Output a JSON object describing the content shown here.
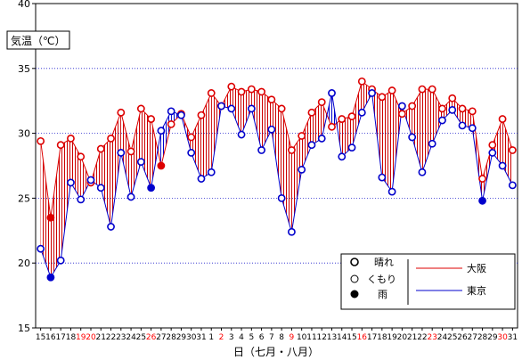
{
  "chart_data": {
    "type": "line",
    "ylabel": "気温（℃）",
    "xlabel": "日（七月・八月）",
    "ylim": [
      15,
      40
    ],
    "yticks": [
      15,
      20,
      25,
      30,
      35,
      40
    ],
    "grid": true,
    "categories": [
      "15",
      "16",
      "17",
      "18",
      "19",
      "20",
      "21",
      "22",
      "23",
      "24",
      "25",
      "26",
      "27",
      "28",
      "29",
      "30",
      "31",
      "1",
      "2",
      "3",
      "4",
      "5",
      "6",
      "7",
      "8",
      "9",
      "10",
      "11",
      "12",
      "13",
      "14",
      "15",
      "16",
      "17",
      "18",
      "19",
      "20",
      "21",
      "22",
      "23",
      "24",
      "25",
      "26",
      "27",
      "28",
      "29",
      "30",
      "31"
    ],
    "category_colors": [
      "#000000",
      "#000000",
      "#000000",
      "#000000",
      "#ff0000",
      "#ff0000",
      "#000000",
      "#000000",
      "#000000",
      "#000000",
      "#000000",
      "#ff0000",
      "#000000",
      "#000000",
      "#000000",
      "#000000",
      "#000000",
      "#000000",
      "#ff0000",
      "#000000",
      "#000000",
      "#000000",
      "#000000",
      "#000000",
      "#000000",
      "#ff0000",
      "#000000",
      "#000000",
      "#000000",
      "#000000",
      "#000000",
      "#000000",
      "#ff0000",
      "#000000",
      "#000000",
      "#000000",
      "#000000",
      "#000000",
      "#000000",
      "#ff0000",
      "#000000",
      "#000000",
      "#000000",
      "#000000",
      "#000000",
      "#000000",
      "#ff0000",
      "#000000"
    ],
    "series": [
      {
        "name": "大阪",
        "color": "#dd0000",
        "values": [
          29.4,
          23.5,
          29.1,
          29.6,
          28.2,
          26.2,
          28.8,
          29.6,
          31.6,
          28.6,
          31.9,
          31.1,
          27.5,
          30.7,
          31.5,
          29.7,
          31.4,
          33.1,
          32.1,
          33.6,
          33.2,
          33.4,
          33.2,
          32.6,
          31.9,
          28.7,
          29.8,
          31.6,
          32.4,
          30.5,
          31.1,
          31.3,
          34.0,
          33.4,
          32.8,
          33.3,
          31.5,
          32.1,
          33.4,
          33.4,
          31.9,
          32.7,
          31.9,
          31.7,
          26.5,
          29.1,
          31.1,
          28.7
        ],
        "markers": [
          "sunny",
          "rain",
          "sunny",
          "sunny",
          "sunny",
          "sunny",
          "sunny",
          "sunny",
          "sunny",
          "sunny",
          "sunny",
          "sunny",
          "rain",
          "sunny",
          "sunny",
          "sunny",
          "sunny",
          "sunny",
          "sunny",
          "sunny",
          "sunny",
          "sunny",
          "sunny",
          "sunny",
          "sunny",
          "sunny",
          "sunny",
          "sunny",
          "sunny",
          "sunny",
          "sunny",
          "sunny",
          "sunny",
          "sunny",
          "sunny",
          "sunny",
          "sunny",
          "sunny",
          "sunny",
          "sunny",
          "sunny",
          "sunny",
          "sunny",
          "sunny",
          "sunny",
          "sunny",
          "sunny",
          "sunny"
        ]
      },
      {
        "name": "東京",
        "color": "#0000cc",
        "values": [
          21.1,
          18.9,
          20.2,
          26.2,
          24.9,
          26.4,
          25.8,
          22.8,
          28.5,
          25.1,
          27.8,
          25.8,
          30.2,
          31.7,
          31.4,
          28.5,
          26.5,
          27.0,
          32.1,
          31.9,
          29.9,
          31.9,
          28.7,
          30.3,
          25.0,
          22.4,
          27.2,
          29.1,
          29.6,
          33.1,
          28.2,
          28.9,
          31.6,
          33.1,
          26.6,
          25.5,
          32.1,
          29.7,
          27.0,
          29.2,
          31.0,
          31.8,
          30.6,
          30.4,
          24.8,
          28.5,
          27.5,
          26.0
        ],
        "markers": [
          "sunny",
          "rain",
          "sunny",
          "sunny",
          "sunny",
          "sunny",
          "sunny",
          "sunny",
          "sunny",
          "sunny",
          "sunny",
          "rain",
          "sunny",
          "sunny",
          "sunny",
          "sunny",
          "sunny",
          "sunny",
          "sunny",
          "sunny",
          "sunny",
          "sunny",
          "sunny",
          "sunny",
          "sunny",
          "sunny",
          "sunny",
          "sunny",
          "sunny",
          "sunny",
          "sunny",
          "sunny",
          "sunny",
          "sunny",
          "sunny",
          "sunny",
          "sunny",
          "sunny",
          "sunny",
          "sunny",
          "sunny",
          "sunny",
          "sunny",
          "sunny",
          "rain",
          "sunny",
          "sunny",
          "sunny"
        ]
      }
    ],
    "legend": {
      "placement": "bottom-right",
      "weather": [
        {
          "symbol": "open-thick",
          "label": "晴れ"
        },
        {
          "symbol": "open-thin",
          "label": "くもり"
        },
        {
          "symbol": "filled",
          "label": "雨"
        }
      ],
      "lines": [
        {
          "label": "大阪",
          "color": "#dd0000"
        },
        {
          "label": "東京",
          "color": "#0000cc"
        }
      ]
    },
    "fill_colors": {
      "osaka_higher": "#cc0000",
      "tokyo_higher": "#0000cc"
    }
  }
}
